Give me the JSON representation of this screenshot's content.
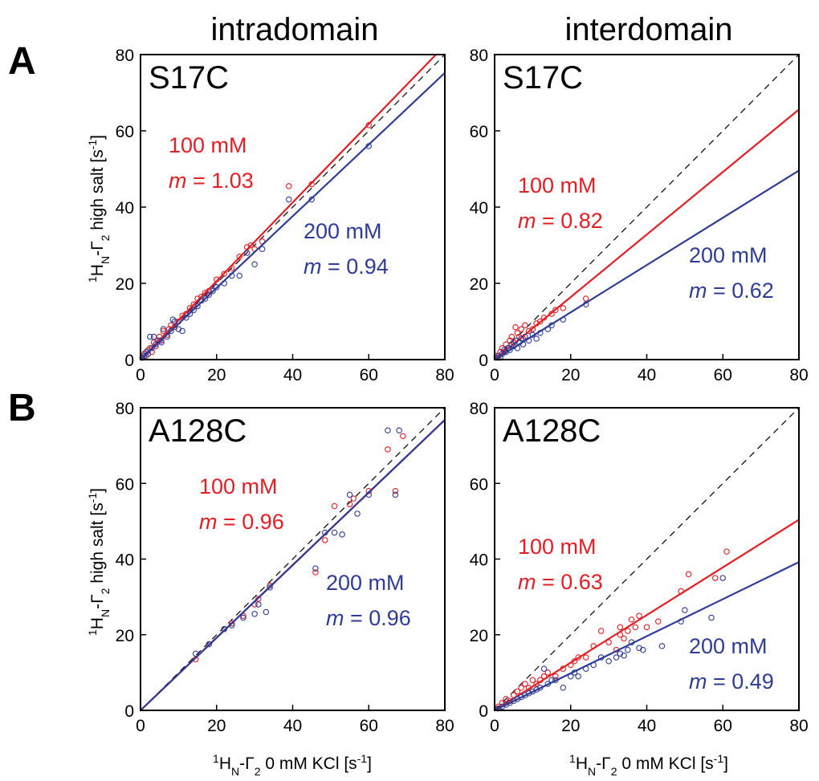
{
  "column_titles": [
    "intradomain",
    "interdomain"
  ],
  "row_labels": [
    "A",
    "B"
  ],
  "shared_axes": {
    "ylabel": "1HN-Γ2 high salt [s-1]",
    "xlabel": "1HN-Γ2 0 mM KCl [s-1]",
    "ticks": [
      "0",
      "20",
      "40",
      "60",
      "80"
    ]
  },
  "colors": {
    "c100": "#e31e24",
    "c200": "#2e3c96",
    "identity": "#000000"
  },
  "chart_data": [
    {
      "type": "scatter",
      "title": "S17C",
      "xlim": [
        0,
        80
      ],
      "ylim": [
        0,
        80
      ],
      "identity_line": true,
      "series": [
        {
          "name": "100 mM",
          "slope": 1.03,
          "annotation": "m = 1.03",
          "points": [
            [
              0.5,
              0.5
            ],
            [
              1,
              1.5
            ],
            [
              1.5,
              1
            ],
            [
              2,
              2.5
            ],
            [
              2.5,
              3
            ],
            [
              3,
              2
            ],
            [
              3.5,
              4.5
            ],
            [
              4,
              3.5
            ],
            [
              4.5,
              5
            ],
            [
              5,
              6
            ],
            [
              5.5,
              5
            ],
            [
              6,
              7.5
            ],
            [
              7,
              6.5
            ],
            [
              7.5,
              8
            ],
            [
              8,
              9
            ],
            [
              9,
              8.5
            ],
            [
              10,
              10
            ],
            [
              11,
              11.5
            ],
            [
              12,
              12
            ],
            [
              13,
              13.5
            ],
            [
              14,
              14.5
            ],
            [
              15,
              16
            ],
            [
              16,
              16.5
            ],
            [
              17,
              17.5
            ],
            [
              18,
              18
            ],
            [
              20,
              21
            ],
            [
              22,
              22.5
            ],
            [
              24,
              24
            ],
            [
              26,
              27
            ],
            [
              28,
              29.5
            ],
            [
              29,
              30
            ],
            [
              30,
              29
            ],
            [
              32,
              31
            ],
            [
              39,
              45.5
            ],
            [
              45,
              46
            ],
            [
              60,
              61.5
            ]
          ]
        },
        {
          "name": "200 mM",
          "slope": 0.94,
          "annotation": "m = 0.94",
          "points": [
            [
              0.5,
              0.5
            ],
            [
              1,
              1
            ],
            [
              1.5,
              2
            ],
            [
              2,
              1.5
            ],
            [
              2.5,
              6
            ],
            [
              3,
              3
            ],
            [
              3.5,
              6
            ],
            [
              4,
              4
            ],
            [
              5,
              5
            ],
            [
              5.5,
              4.5
            ],
            [
              6,
              8
            ],
            [
              7,
              6
            ],
            [
              8,
              7.5
            ],
            [
              8.5,
              10.5
            ],
            [
              9,
              10
            ],
            [
              10,
              8
            ],
            [
              11,
              7.5
            ],
            [
              12,
              11
            ],
            [
              13,
              12
            ],
            [
              14,
              13
            ],
            [
              15,
              14
            ],
            [
              16,
              15.5
            ],
            [
              17,
              16
            ],
            [
              18,
              17
            ],
            [
              19,
              18
            ],
            [
              20,
              19
            ],
            [
              22,
              20
            ],
            [
              24,
              22
            ],
            [
              26,
              22
            ],
            [
              28,
              28
            ],
            [
              30,
              25
            ],
            [
              32,
              29
            ],
            [
              39,
              42
            ],
            [
              45,
              42
            ],
            [
              60,
              56
            ]
          ]
        }
      ]
    },
    {
      "type": "scatter",
      "title": "S17C",
      "xlim": [
        0,
        80
      ],
      "ylim": [
        0,
        80
      ],
      "identity_line": true,
      "series": [
        {
          "name": "100 mM",
          "slope": 0.82,
          "annotation": "m = 0.82",
          "points": [
            [
              0.5,
              1
            ],
            [
              1,
              0.5
            ],
            [
              1.5,
              2
            ],
            [
              2,
              3
            ],
            [
              2.5,
              2
            ],
            [
              3,
              4
            ],
            [
              3.5,
              3
            ],
            [
              4,
              5
            ],
            [
              4.5,
              6
            ],
            [
              5,
              4.5
            ],
            [
              5.5,
              8.5
            ],
            [
              6,
              7
            ],
            [
              6.5,
              6
            ],
            [
              7,
              8
            ],
            [
              7.5,
              5.5
            ],
            [
              8,
              9
            ],
            [
              9,
              7.5
            ],
            [
              10,
              8
            ],
            [
              11,
              9.5
            ],
            [
              12,
              10
            ],
            [
              13,
              11
            ],
            [
              15,
              12
            ],
            [
              16,
              13
            ],
            [
              18,
              13.5
            ],
            [
              24,
              16
            ]
          ]
        },
        {
          "name": "200 mM",
          "slope": 0.62,
          "annotation": "m = 0.62",
          "points": [
            [
              0.5,
              0.5
            ],
            [
              1,
              1
            ],
            [
              1.5,
              0.5
            ],
            [
              2,
              1.5
            ],
            [
              2.5,
              2.5
            ],
            [
              3,
              2
            ],
            [
              3.5,
              3
            ],
            [
              4,
              2.5
            ],
            [
              4.5,
              4
            ],
            [
              5,
              3.5
            ],
            [
              5.5,
              5
            ],
            [
              6,
              3
            ],
            [
              6.5,
              4.5
            ],
            [
              7,
              5.5
            ],
            [
              7.5,
              4
            ],
            [
              8,
              6
            ],
            [
              9,
              5
            ],
            [
              10,
              6.5
            ],
            [
              11,
              5.5
            ],
            [
              12,
              7
            ],
            [
              14,
              8
            ],
            [
              15,
              9
            ],
            [
              18,
              10.5
            ],
            [
              24,
              14.5
            ]
          ]
        }
      ]
    },
    {
      "type": "scatter",
      "title": "A128C",
      "xlim": [
        0,
        80
      ],
      "ylim": [
        0,
        80
      ],
      "identity_line": true,
      "series": [
        {
          "name": "100 mM",
          "slope": 0.96,
          "annotation": "m = 0.96",
          "points": [
            [
              14.5,
              13.5
            ],
            [
              18,
              17.5
            ],
            [
              22,
              21.5
            ],
            [
              24,
              23
            ],
            [
              27,
              25
            ],
            [
              30,
              28
            ],
            [
              31,
              29.5
            ],
            [
              34,
              33
            ],
            [
              46,
              36.5
            ],
            [
              48.5,
              45
            ],
            [
              51,
              54
            ],
            [
              55,
              54.5
            ],
            [
              56,
              56
            ],
            [
              60,
              58
            ],
            [
              65,
              69
            ],
            [
              67,
              58
            ],
            [
              69,
              72.5
            ]
          ]
        },
        {
          "name": "200 mM",
          "slope": 0.96,
          "annotation": "m = 0.96",
          "points": [
            [
              14.5,
              15
            ],
            [
              18,
              17.5
            ],
            [
              22,
              21.5
            ],
            [
              24,
              22.5
            ],
            [
              27,
              24.5
            ],
            [
              30,
              25.5
            ],
            [
              31,
              28
            ],
            [
              33,
              26
            ],
            [
              34,
              32.5
            ],
            [
              46,
              37.5
            ],
            [
              48.5,
              47
            ],
            [
              51,
              47
            ],
            [
              53,
              46.5
            ],
            [
              55,
              57
            ],
            [
              57,
              52
            ],
            [
              60,
              57
            ],
            [
              65,
              74
            ],
            [
              67,
              57
            ],
            [
              68,
              74
            ]
          ]
        }
      ]
    },
    {
      "type": "scatter",
      "title": "A128C",
      "xlim": [
        0,
        80
      ],
      "ylim": [
        0,
        80
      ],
      "identity_line": true,
      "series": [
        {
          "name": "100 mM",
          "slope": 0.63,
          "annotation": "m = 0.63",
          "points": [
            [
              1,
              1
            ],
            [
              2,
              2
            ],
            [
              3,
              3
            ],
            [
              4,
              2.5
            ],
            [
              5,
              4
            ],
            [
              6,
              5
            ],
            [
              7,
              6
            ],
            [
              8,
              7
            ],
            [
              9,
              6
            ],
            [
              10,
              8
            ],
            [
              11,
              7
            ],
            [
              12,
              8
            ],
            [
              13,
              9
            ],
            [
              14,
              10
            ],
            [
              16,
              9
            ],
            [
              18,
              11
            ],
            [
              20,
              12
            ],
            [
              21,
              13
            ],
            [
              22,
              14
            ],
            [
              24,
              14
            ],
            [
              26,
              17
            ],
            [
              28,
              21
            ],
            [
              30,
              18
            ],
            [
              32,
              16
            ],
            [
              33,
              20
            ],
            [
              33,
              22
            ],
            [
              34,
              19
            ],
            [
              35,
              21
            ],
            [
              36,
              24
            ],
            [
              37,
              22
            ],
            [
              38,
              25
            ],
            [
              40,
              22
            ],
            [
              43,
              23.5
            ],
            [
              49,
              31.5
            ],
            [
              51,
              36
            ],
            [
              58,
              35
            ],
            [
              61,
              42
            ]
          ]
        },
        {
          "name": "200 mM",
          "slope": 0.49,
          "annotation": "m = 0.49",
          "points": [
            [
              1,
              0.5
            ],
            [
              2,
              1
            ],
            [
              3,
              1.5
            ],
            [
              4,
              2
            ],
            [
              5,
              2.5
            ],
            [
              6,
              3
            ],
            [
              7,
              3.5
            ],
            [
              8,
              4
            ],
            [
              9,
              4.5
            ],
            [
              10,
              5
            ],
            [
              11,
              5.5
            ],
            [
              12,
              6
            ],
            [
              13,
              11
            ],
            [
              14,
              7
            ],
            [
              15,
              8
            ],
            [
              16,
              8
            ],
            [
              18,
              6
            ],
            [
              20,
              9
            ],
            [
              21,
              10
            ],
            [
              22,
              9
            ],
            [
              24,
              11
            ],
            [
              26,
              12
            ],
            [
              28,
              14
            ],
            [
              30,
              13
            ],
            [
              32,
              14
            ],
            [
              33,
              15
            ],
            [
              34,
              14.5
            ],
            [
              35,
              16
            ],
            [
              36,
              18
            ],
            [
              38,
              16.5
            ],
            [
              39,
              16
            ],
            [
              44,
              17
            ],
            [
              49,
              23.5
            ],
            [
              50,
              26.5
            ],
            [
              57,
              24.5
            ],
            [
              60,
              35
            ]
          ]
        }
      ]
    }
  ]
}
